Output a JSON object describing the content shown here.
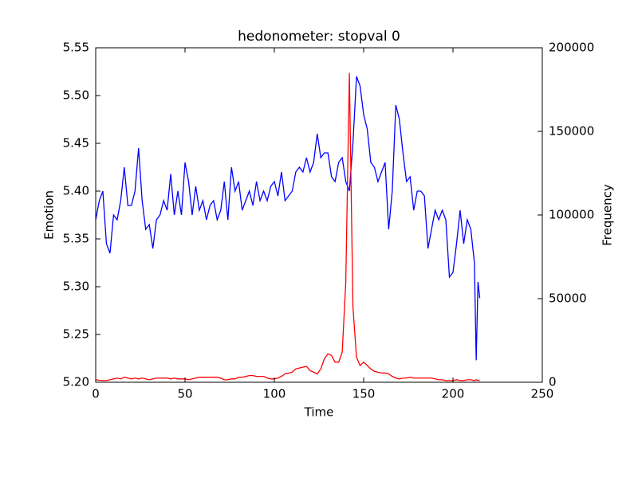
{
  "chart_data": {
    "type": "line",
    "title": "hedonometer: stopval 0",
    "xlabel": "Time",
    "ylabel": "Emotion",
    "y2label": "Frequency",
    "x": [
      0,
      2,
      4,
      6,
      8,
      10,
      12,
      14,
      16,
      18,
      20,
      22,
      24,
      26,
      28,
      30,
      32,
      34,
      36,
      38,
      40,
      42,
      44,
      46,
      48,
      50,
      52,
      54,
      56,
      58,
      60,
      62,
      64,
      66,
      68,
      70,
      72,
      74,
      76,
      78,
      80,
      82,
      84,
      86,
      88,
      90,
      92,
      94,
      96,
      98,
      100,
      102,
      104,
      106,
      108,
      110,
      112,
      114,
      116,
      118,
      120,
      122,
      124,
      126,
      128,
      130,
      132,
      134,
      136,
      138,
      140,
      142,
      144,
      146,
      148,
      150,
      152,
      154,
      156,
      158,
      160,
      162,
      164,
      166,
      168,
      170,
      172,
      174,
      176,
      178,
      180,
      182,
      184,
      186,
      188,
      190,
      192,
      194,
      196,
      198,
      200,
      202,
      204,
      206,
      208,
      210,
      212,
      213,
      214,
      215
    ],
    "series": [
      {
        "color": "#0000ff",
        "values": [
          5.37,
          5.39,
          5.4,
          5.345,
          5.335,
          5.375,
          5.37,
          5.39,
          5.425,
          5.385,
          5.385,
          5.4,
          5.445,
          5.39,
          5.36,
          5.365,
          5.34,
          5.37,
          5.375,
          5.39,
          5.38,
          5.418,
          5.375,
          5.4,
          5.375,
          5.43,
          5.41,
          5.375,
          5.405,
          5.38,
          5.39,
          5.37,
          5.385,
          5.39,
          5.37,
          5.38,
          5.41,
          5.37,
          5.425,
          5.4,
          5.41,
          5.38,
          5.39,
          5.4,
          5.385,
          5.41,
          5.39,
          5.4,
          5.39,
          5.405,
          5.41,
          5.395,
          5.42,
          5.39,
          5.395,
          5.4,
          5.42,
          5.425,
          5.42,
          5.435,
          5.42,
          5.43,
          5.46,
          5.435,
          5.44,
          5.44,
          5.415,
          5.41,
          5.43,
          5.435,
          5.41,
          5.4,
          5.45,
          5.52,
          5.51,
          5.48,
          5.465,
          5.43,
          5.425,
          5.41,
          5.42,
          5.43,
          5.36,
          5.4,
          5.49,
          5.475,
          5.44,
          5.41,
          5.415,
          5.38,
          5.4,
          5.4,
          5.395,
          5.34,
          5.36,
          5.38,
          5.37,
          5.38,
          5.37,
          5.31,
          5.315,
          5.345,
          5.38,
          5.345,
          5.37,
          5.36,
          5.325,
          5.223,
          5.305,
          5.288
        ]
      },
      {
        "color": "#ff0000",
        "axis": "y2",
        "values": [
          1500,
          1200,
          1000,
          1000,
          1500,
          2000,
          2500,
          2000,
          3000,
          2500,
          2000,
          2500,
          2000,
          2500,
          2000,
          1500,
          2000,
          2500,
          2500,
          2500,
          2500,
          2000,
          2500,
          2000,
          2000,
          2000,
          1500,
          2000,
          2500,
          3000,
          3000,
          3000,
          3000,
          3000,
          3000,
          2500,
          1500,
          1500,
          2000,
          2000,
          3000,
          3000,
          3500,
          4000,
          4000,
          3500,
          3500,
          3500,
          2500,
          2000,
          2000,
          2500,
          3500,
          5000,
          5500,
          6000,
          8000,
          8500,
          9000,
          9500,
          7000,
          6000,
          5000,
          8000,
          14000,
          17000,
          16000,
          12000,
          12000,
          18000,
          60000,
          185000,
          45000,
          15000,
          10000,
          12000,
          10000,
          8000,
          6500,
          6000,
          5500,
          5500,
          5000,
          3500,
          2500,
          2000,
          2500,
          2500,
          3000,
          2500,
          2500,
          2500,
          2500,
          2500,
          2500,
          2000,
          1500,
          1500,
          1000,
          1000,
          1000,
          1500,
          1000,
          1000,
          1500,
          1500,
          1000,
          1500,
          1000,
          1000
        ]
      }
    ],
    "xlim": [
      0,
      250
    ],
    "xticks": [
      0,
      50,
      100,
      150,
      200,
      250
    ],
    "ylim": [
      5.2,
      5.55
    ],
    "yticks": [
      {
        "value": 5.2,
        "label": "5.20"
      },
      5.25,
      {
        "value": 5.3,
        "label": "5.30"
      },
      5.35,
      {
        "value": 5.4,
        "label": "5.40"
      },
      5.45,
      {
        "value": 5.5,
        "label": "5.50"
      },
      5.55
    ],
    "y2lim": [
      0,
      200000
    ],
    "y2ticks": [
      0,
      50000,
      100000,
      150000,
      200000
    ]
  }
}
